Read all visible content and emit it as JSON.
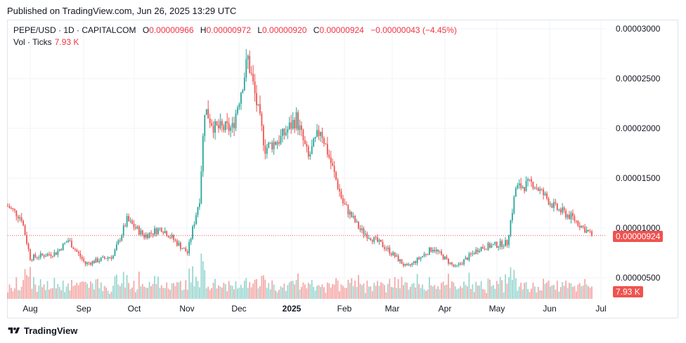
{
  "published": "Published on TradingView.com, Jun 26, 2025 13:29 UTC",
  "legend": {
    "symbol": "PEPE/USD · 1D · CAPITALCOM",
    "o_label": "O",
    "o_value": "0.00000966",
    "h_label": "H",
    "h_value": "0.00000972",
    "l_label": "L",
    "l_value": "0.00000920",
    "c_label": "C",
    "c_value": "0.00000924",
    "change": "−0.00000043 (−4.45%)",
    "vol_label": "Vol · Ticks",
    "vol_value": "7.93 K"
  },
  "price_tag": "0.00000924",
  "volume_tag": "7.93 K",
  "brand": "TradingView",
  "colors": {
    "up": "#26a69a",
    "down": "#ef5350",
    "up_vol": "#9ad7d1",
    "down_vol": "#f4a9a7",
    "tag": "#ef5350"
  },
  "chart_data": {
    "type": "candlestick",
    "ylim": [
      3.8e-06,
      3.15e-05
    ],
    "y_ticks": [
      "0.00003000",
      "0.00002500",
      "0.00002000",
      "0.00001500",
      "0.00001000",
      "0.00000500"
    ],
    "y_tick_values": [
      3e-05,
      2.5e-05,
      2e-05,
      1.5e-05,
      1e-05,
      5e-06
    ],
    "x_ticks": [
      "Aug",
      "Sep",
      "Oct",
      "Nov",
      "Dec",
      "2025",
      "Feb",
      "Mar",
      "Apr",
      "May",
      "Jun",
      "Jul"
    ],
    "grid": true,
    "last_close": 9.24e-06,
    "approx_close_path": [
      [
        "2024-07-23",
        1.22e-05
      ],
      [
        "2024-07-31",
        1.1e-05
      ],
      [
        "2024-08-05",
        7e-06
      ],
      [
        "2024-08-20",
        7.5e-06
      ],
      [
        "2024-08-27",
        8.8e-06
      ],
      [
        "2024-09-06",
        6.4e-06
      ],
      [
        "2024-09-22",
        7.2e-06
      ],
      [
        "2024-09-30",
        1.08e-05
      ],
      [
        "2024-10-10",
        9.2e-06
      ],
      [
        "2024-10-20",
        1e-05
      ],
      [
        "2024-11-04",
        7.5e-06
      ],
      [
        "2024-11-11",
        1.3e-05
      ],
      [
        "2024-11-14",
        2.2e-05
      ],
      [
        "2024-11-20",
        2e-05
      ],
      [
        "2024-11-30",
        2e-05
      ],
      [
        "2024-12-09",
        2.7e-05
      ],
      [
        "2024-12-19",
        1.8e-05
      ],
      [
        "2024-12-28",
        1.9e-05
      ],
      [
        "2025-01-06",
        2.1e-05
      ],
      [
        "2025-01-13",
        1.7e-05
      ],
      [
        "2025-01-20",
        2e-05
      ],
      [
        "2025-02-02",
        1.25e-05
      ],
      [
        "2025-02-12",
        9.8e-06
      ],
      [
        "2025-02-27",
        8e-06
      ],
      [
        "2025-03-11",
        6e-06
      ],
      [
        "2025-03-26",
        8e-06
      ],
      [
        "2025-04-08",
        6e-06
      ],
      [
        "2025-04-22",
        8e-06
      ],
      [
        "2025-05-08",
        8.5e-06
      ],
      [
        "2025-05-13",
        1.4e-05
      ],
      [
        "2025-05-23",
        1.45e-05
      ],
      [
        "2025-06-05",
        1.2e-05
      ],
      [
        "2025-06-15",
        1.1e-05
      ],
      [
        "2025-06-26",
        9.24e-06
      ]
    ]
  }
}
